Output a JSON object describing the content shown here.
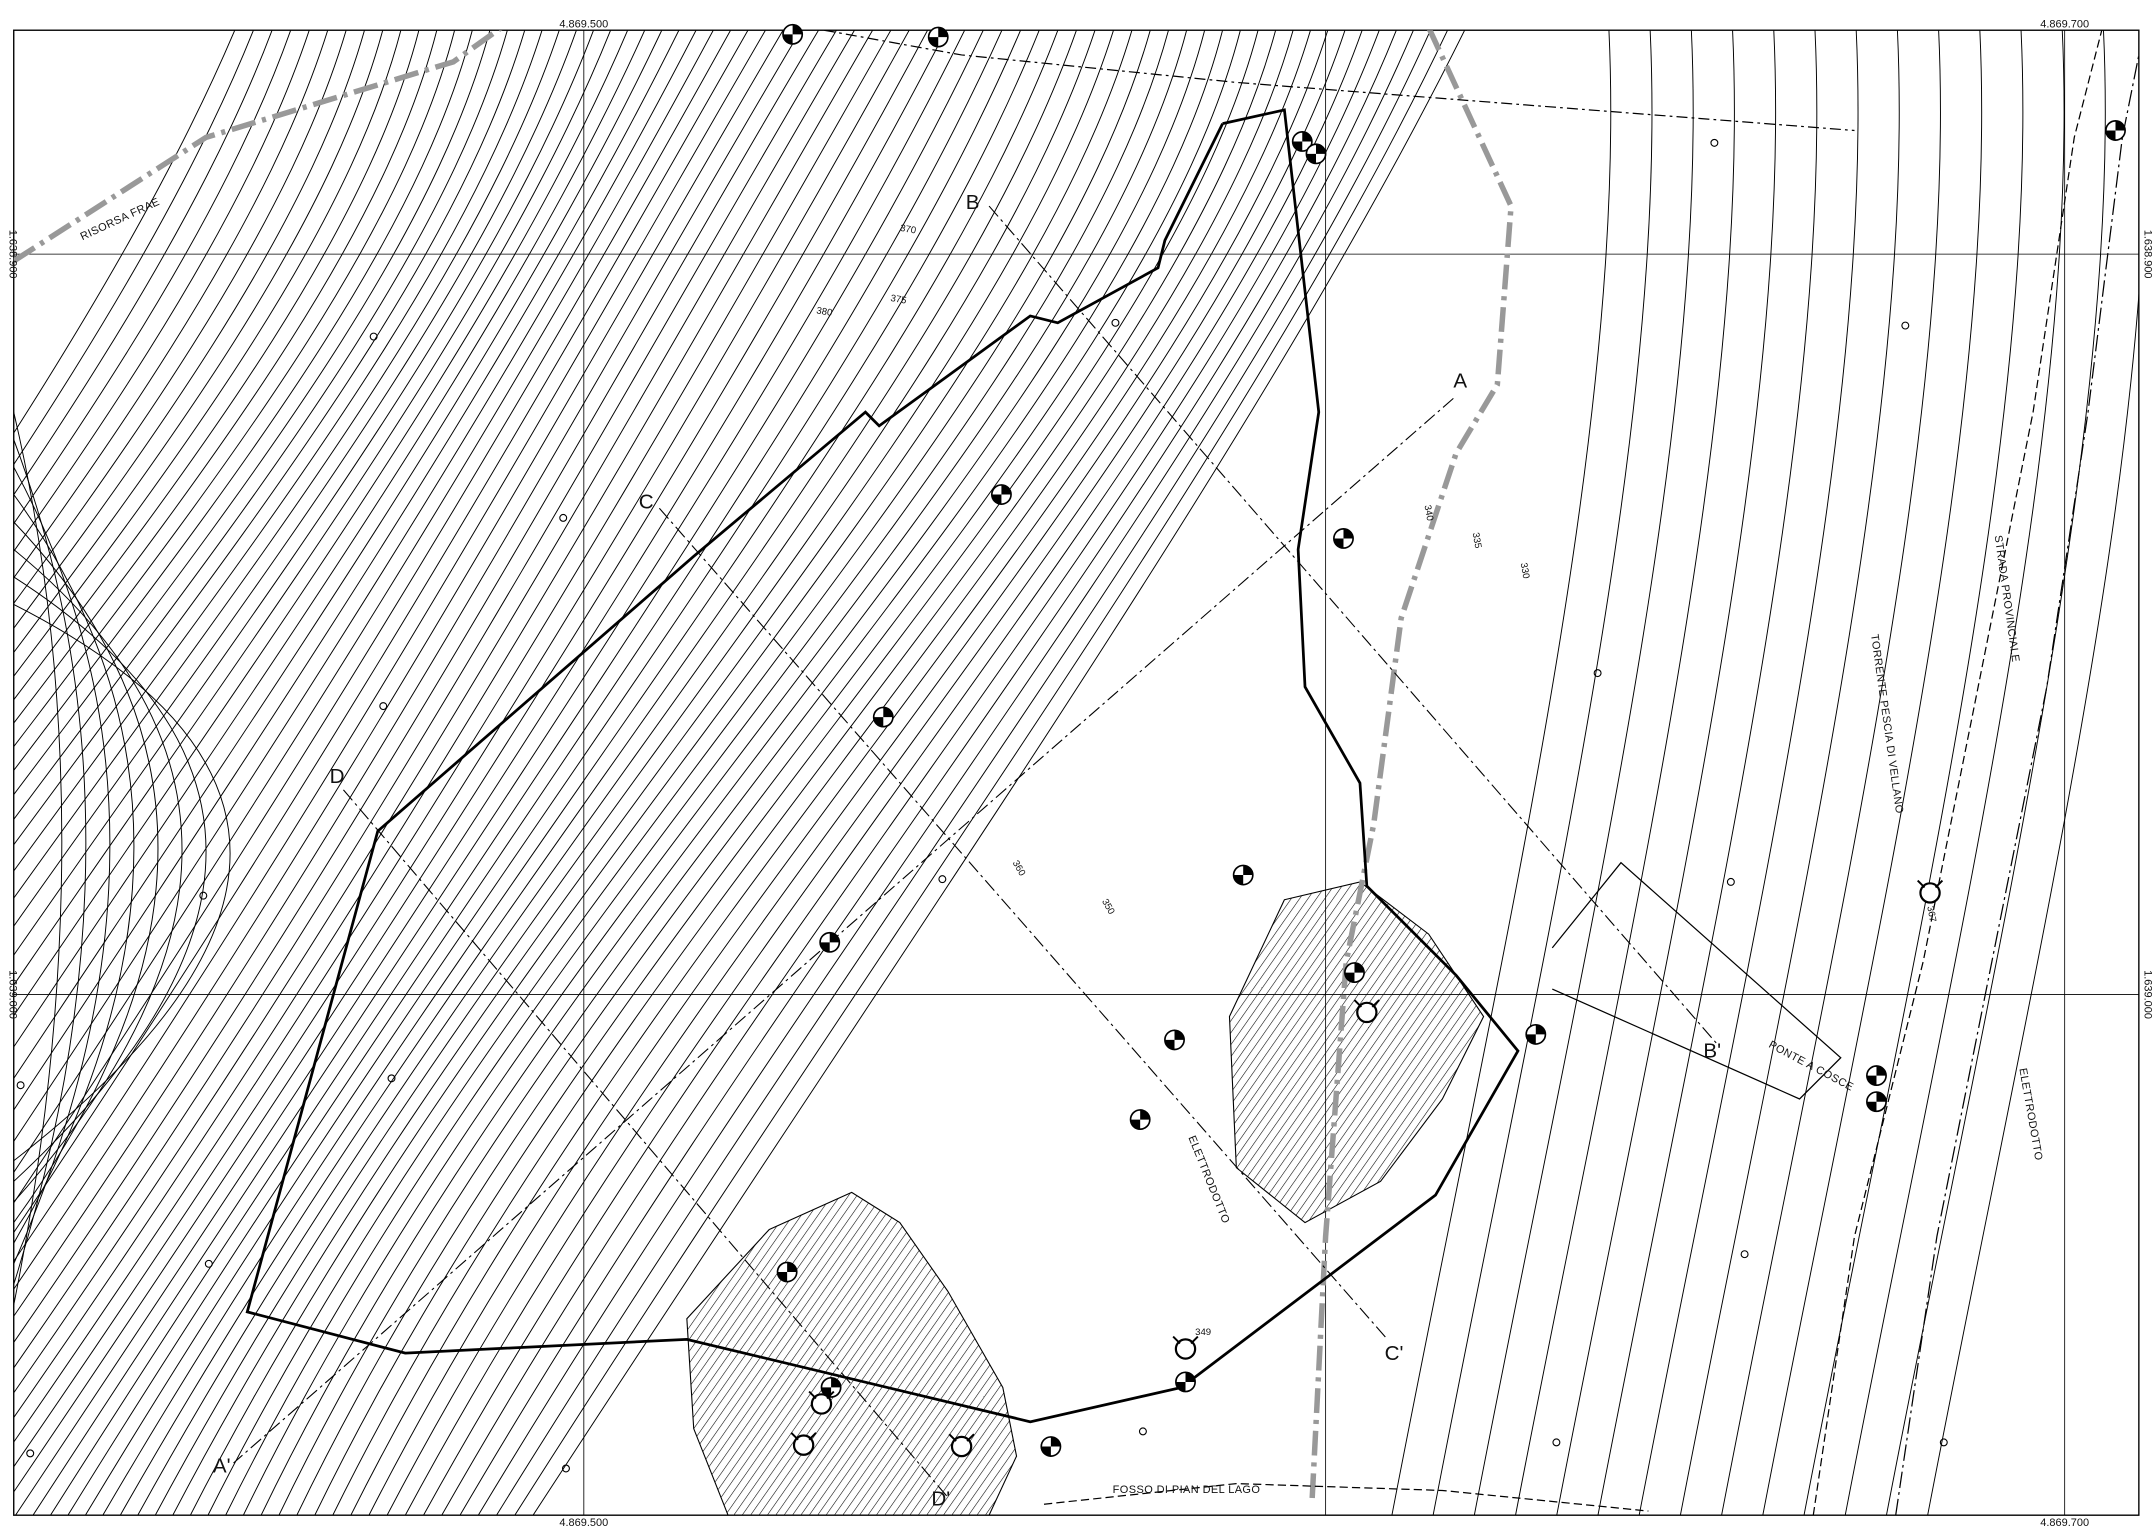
{
  "grid_labels": {
    "easting": [
      "4.869.500",
      "4.869.700"
    ],
    "northing": [
      "1.638.900",
      "1.639.000"
    ]
  },
  "sections": [
    "A",
    "A'",
    "B",
    "B'",
    "C",
    "C'",
    "D",
    "D'"
  ],
  "labels": {
    "road": "STRADA PROVINCIALE",
    "river": "TORRENTE PESCIA DI VELLANO",
    "power_line": "ELETTRODOTTO",
    "bridge": "PONTE A COSCE",
    "ditch": "FOSSO DI PIAN DEL LAGO",
    "boundary": "RISORSA FRAE"
  },
  "elevations": [
    "380",
    "375",
    "370",
    "360",
    "350",
    "349",
    "340",
    "335",
    "330",
    "367"
  ]
}
